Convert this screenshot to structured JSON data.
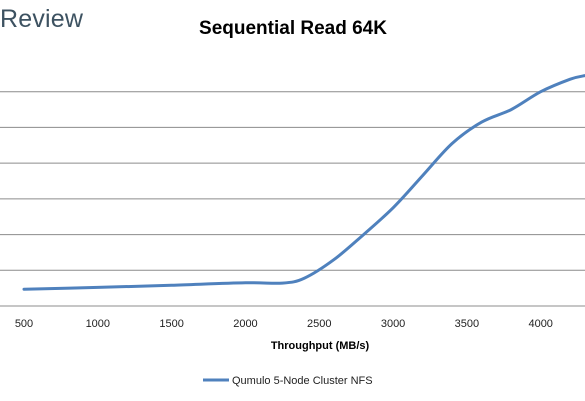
{
  "brand": {
    "text": "Review"
  },
  "chart_data": {
    "type": "line",
    "title": "Sequential Read 64K",
    "xlabel": "Throughput (MB/s)",
    "ylabel": "",
    "xlim": [
      500,
      4300
    ],
    "ylim": [
      0,
      7
    ],
    "x_ticks": [
      500,
      1000,
      1500,
      2000,
      2500,
      3000,
      3500,
      4000
    ],
    "grid": true,
    "legend_position": "bottom",
    "series": [
      {
        "name": "Qumulo 5-Node Cluster NFS",
        "color": "#4f81bd",
        "x": [
          500,
          1000,
          1500,
          2000,
          2250,
          2400,
          2600,
          2800,
          3000,
          3200,
          3400,
          3600,
          3800,
          4000,
          4200,
          4300
        ],
        "y": [
          0.47,
          0.52,
          0.58,
          0.65,
          0.64,
          0.78,
          1.3,
          2.0,
          2.75,
          3.65,
          4.55,
          5.15,
          5.5,
          6.0,
          6.35,
          6.45
        ]
      }
    ]
  }
}
